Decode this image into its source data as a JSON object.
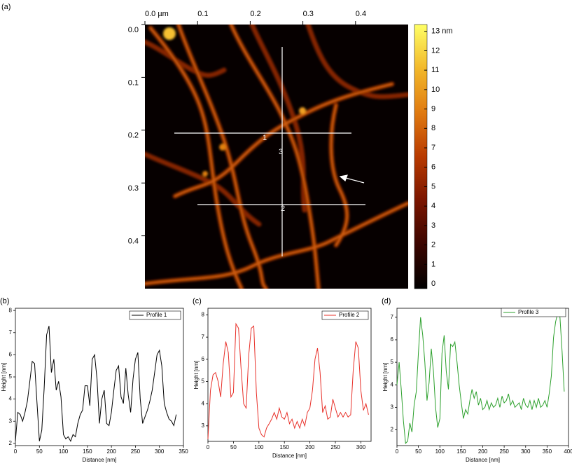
{
  "chart_data": [
    {
      "type": "image",
      "panel_label": "(a)",
      "xlim": [
        0,
        0.5
      ],
      "xticks": [
        {
          "value": 0,
          "label": "0.0 µm"
        },
        0.1,
        0.2,
        0.3,
        0.4
      ],
      "ylim": [
        0,
        0.5
      ],
      "yticks": [
        {
          "value": 0,
          "label": "0.0"
        },
        0.1,
        0.2,
        0.3,
        0.4
      ],
      "zlim": [
        -0.25,
        13.35
      ],
      "zticks": [
        0,
        1,
        2,
        3,
        4,
        5,
        6,
        7,
        8,
        9,
        10,
        11,
        12,
        {
          "value": 13,
          "label": "13 nm"
        }
      ],
      "colormap": [
        "#000000",
        "#3a0500",
        "#7a1500",
        "#b83a00",
        "#e07a10",
        "#f2b82a",
        "#ffff66"
      ],
      "annotations": [
        "1",
        "3",
        "2"
      ]
    },
    {
      "type": "line",
      "panel_label": "(b)",
      "x_label": "Distance [nm]",
      "y_label": "Height [nm]",
      "xlim": [
        0,
        350
      ],
      "xticks": [
        0,
        50,
        100,
        150,
        200,
        250,
        300,
        350
      ],
      "ylim": [
        1.9,
        8.1
      ],
      "yticks": [
        2,
        3,
        4,
        5,
        6,
        7,
        8
      ],
      "legend": "upper right",
      "x": [
        0,
        5,
        10,
        15,
        20,
        25,
        30,
        35,
        40,
        45,
        50,
        55,
        60,
        65,
        70,
        75,
        80,
        85,
        90,
        95,
        100,
        105,
        110,
        115,
        120,
        125,
        130,
        135,
        140,
        145,
        150,
        155,
        160,
        165,
        170,
        175,
        180,
        185,
        190,
        195,
        200,
        205,
        210,
        215,
        220,
        225,
        230,
        235,
        240,
        245,
        250,
        255,
        260,
        265,
        270,
        275,
        280,
        285,
        290,
        295,
        300,
        305,
        310,
        315,
        320,
        325,
        330,
        335
      ],
      "series": [
        {
          "name": "Profile 1",
          "color": "#000000",
          "values": [
            2.1,
            3.4,
            3.3,
            3.0,
            3.4,
            3.9,
            4.8,
            5.7,
            5.6,
            3.8,
            2.1,
            2.6,
            4.5,
            6.9,
            7.3,
            5.2,
            5.8,
            4.4,
            4.8,
            4.1,
            2.4,
            2.2,
            2.3,
            2.1,
            2.4,
            2.3,
            2.9,
            3.3,
            3.5,
            4.6,
            4.6,
            3.7,
            5.8,
            6.0,
            4.9,
            2.9,
            4.0,
            4.4,
            2.9,
            2.8,
            3.4,
            4.4,
            5.3,
            5.5,
            4.1,
            3.8,
            5.4,
            4.2,
            3.4,
            4.9,
            5.8,
            6.1,
            4.0,
            2.9,
            3.2,
            3.5,
            3.9,
            4.4,
            5.2,
            6.0,
            6.2,
            5.5,
            3.8,
            3.4,
            3.1,
            3.0,
            2.8,
            3.3
          ]
        }
      ]
    },
    {
      "type": "line",
      "panel_label": "(c)",
      "x_label": "Distance [nm]",
      "y_label": "Height [nm]",
      "xlim": [
        0,
        320
      ],
      "xticks": [
        0,
        50,
        100,
        150,
        200,
        250,
        300
      ],
      "ylim": [
        2.3,
        8.3
      ],
      "yticks": [
        3,
        4,
        5,
        6,
        7,
        8
      ],
      "legend": "upper right",
      "x": [
        0,
        5,
        10,
        15,
        20,
        25,
        30,
        35,
        40,
        45,
        50,
        55,
        60,
        65,
        70,
        75,
        80,
        85,
        90,
        95,
        100,
        105,
        110,
        115,
        120,
        125,
        130,
        135,
        140,
        145,
        150,
        155,
        160,
        165,
        170,
        175,
        180,
        185,
        190,
        195,
        200,
        205,
        210,
        215,
        220,
        225,
        230,
        235,
        240,
        245,
        250,
        255,
        260,
        265,
        270,
        275,
        280,
        285,
        290,
        295,
        300,
        305,
        310,
        315
      ],
      "series": [
        {
          "name": "Profile 2",
          "color": "#e8312a",
          "values": [
            2.4,
            4.6,
            5.3,
            5.4,
            5.0,
            4.3,
            5.8,
            6.8,
            6.3,
            4.3,
            4.5,
            7.6,
            7.4,
            5.6,
            4.0,
            3.8,
            6.2,
            7.4,
            7.5,
            4.5,
            2.9,
            2.6,
            2.5,
            2.9,
            3.1,
            3.3,
            3.6,
            3.3,
            3.8,
            3.4,
            3.3,
            3.6,
            3.1,
            3.3,
            2.9,
            3.2,
            2.9,
            3.3,
            3.0,
            3.6,
            3.8,
            4.6,
            6.0,
            6.5,
            5.4,
            3.6,
            3.9,
            3.3,
            3.4,
            4.2,
            3.8,
            3.4,
            3.6,
            3.4,
            3.6,
            3.4,
            3.5,
            5.5,
            6.8,
            6.5,
            4.6,
            3.7,
            4.0,
            3.5
          ]
        }
      ]
    },
    {
      "type": "line",
      "panel_label": "(d)",
      "x_label": "Distance [nm]",
      "y_label": "Height [nm]",
      "xlim": [
        0,
        400
      ],
      "xticks": [
        0,
        50,
        100,
        150,
        200,
        250,
        300,
        350,
        400
      ],
      "ylim": [
        1.3,
        7.4
      ],
      "yticks": [
        2,
        3,
        4,
        5,
        6,
        7
      ],
      "legend": "upper right",
      "x": [
        0,
        5,
        10,
        15,
        20,
        25,
        30,
        35,
        40,
        45,
        50,
        55,
        60,
        65,
        70,
        75,
        80,
        85,
        90,
        95,
        100,
        105,
        110,
        115,
        120,
        125,
        130,
        135,
        140,
        145,
        150,
        155,
        160,
        165,
        170,
        175,
        180,
        185,
        190,
        195,
        200,
        205,
        210,
        215,
        220,
        225,
        230,
        235,
        240,
        245,
        250,
        255,
        260,
        265,
        270,
        275,
        280,
        285,
        290,
        295,
        300,
        305,
        310,
        315,
        320,
        325,
        330,
        335,
        340,
        345,
        350,
        355,
        360,
        365,
        370,
        375,
        380,
        385,
        390
      ],
      "series": [
        {
          "name": "Profile 3",
          "color": "#2ca02c",
          "values": [
            4.0,
            5.0,
            3.8,
            2.4,
            1.4,
            1.5,
            2.3,
            1.9,
            3.1,
            3.7,
            5.4,
            7.0,
            6.2,
            5.0,
            3.3,
            4.1,
            5.6,
            4.6,
            3.0,
            2.1,
            2.5,
            5.4,
            6.2,
            4.6,
            3.8,
            5.8,
            5.7,
            5.9,
            5.0,
            4.0,
            3.2,
            2.5,
            2.9,
            2.7,
            3.3,
            3.8,
            3.4,
            3.7,
            3.1,
            3.4,
            2.9,
            3.0,
            3.3,
            2.9,
            3.2,
            3.0,
            3.1,
            3.4,
            3.0,
            3.5,
            3.2,
            3.3,
            3.6,
            3.1,
            3.3,
            3.0,
            3.1,
            3.2,
            2.9,
            3.4,
            3.1,
            3.0,
            3.3,
            2.9,
            3.3,
            3.0,
            3.4,
            3.0,
            3.1,
            3.3,
            3.0,
            3.6,
            4.4,
            6.1,
            6.8,
            7.2,
            7.0,
            5.5,
            3.7
          ]
        }
      ]
    }
  ]
}
